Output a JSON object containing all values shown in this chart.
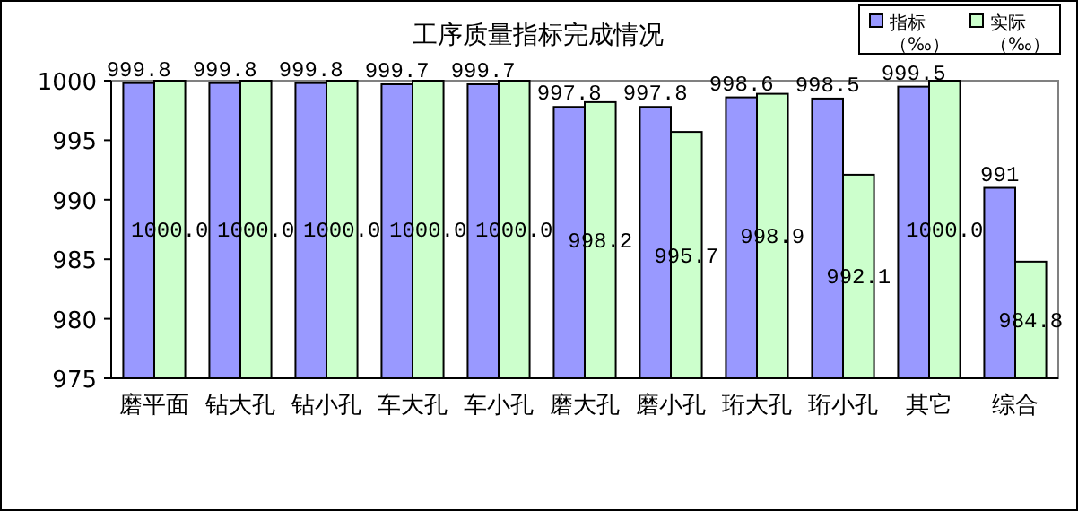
{
  "chart_data": {
    "type": "bar",
    "title": "工序质量指标完成情况",
    "categories": [
      "磨平面",
      "钻大孔",
      "钻小孔",
      "车大孔",
      "车小孔",
      "磨大孔",
      "磨小孔",
      "珩大孔",
      "珩小孔",
      "其它",
      "综合"
    ],
    "series": [
      {
        "name": "指标（‰）",
        "color": "#9999ff",
        "values": [
          999.8,
          999.8,
          999.8,
          999.7,
          999.7,
          997.8,
          997.8,
          998.6,
          998.5,
          999.5,
          991
        ],
        "value_labels": [
          "999.8",
          "999.8",
          "999.8",
          "999.7",
          "999.7",
          "997.8",
          "997.8",
          "998.6",
          "998.5",
          "999.5",
          "991"
        ]
      },
      {
        "name": "实际（‰）",
        "color": "#ccffcc",
        "values": [
          1000.0,
          1000.0,
          1000.0,
          1000.0,
          1000.0,
          998.2,
          995.7,
          998.9,
          992.1,
          1000.0,
          984.8
        ],
        "value_labels": [
          "1000.0",
          "1000.0",
          "1000.0",
          "1000.0",
          "1000.0",
          "998.2",
          "995.7",
          "998.9",
          "992.1",
          "1000.0",
          "984.8"
        ]
      }
    ],
    "ylim": [
      975,
      1000
    ],
    "yticks": [
      975,
      980,
      985,
      990,
      995,
      1000
    ],
    "grid": false,
    "legend": "top right"
  }
}
